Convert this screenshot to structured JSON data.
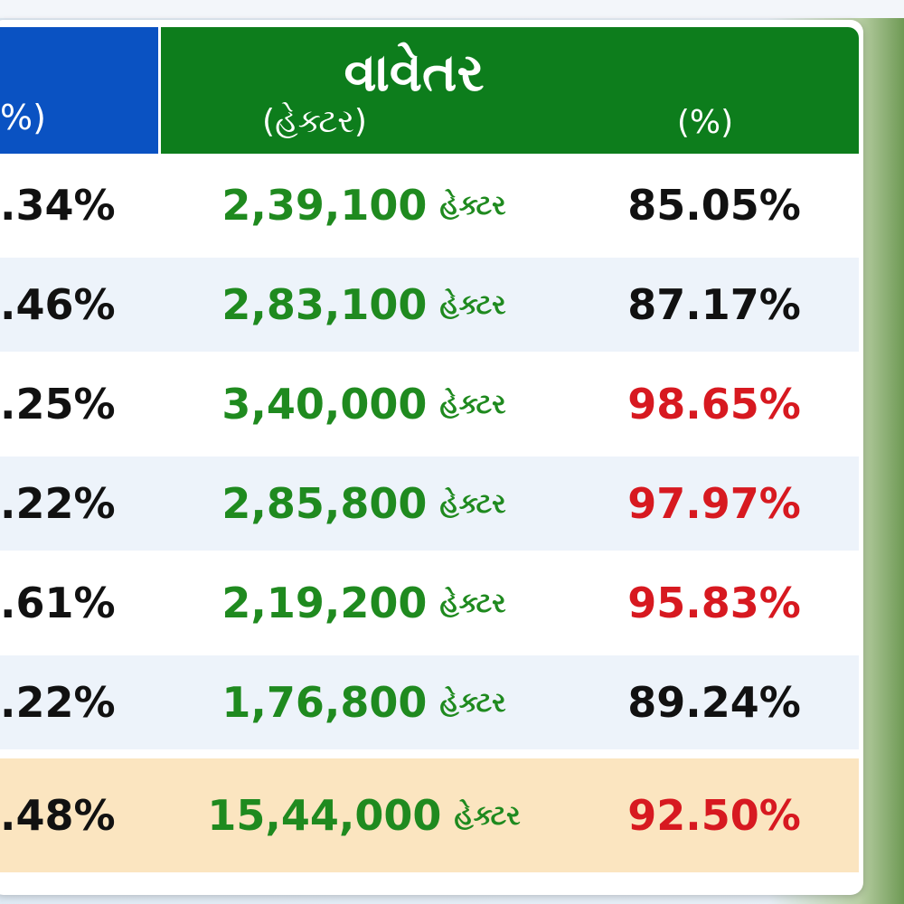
{
  "header": {
    "left_partial": "%)",
    "title": "વાવેતર",
    "sub_area": "(હેક્ટર)",
    "sub_percent": "(%)"
  },
  "table": {
    "rows": [
      {
        "left_partial": ".34%",
        "area": "2,39,100",
        "unit": "હેક્ટર",
        "percent": "85.05%",
        "color": "#111111"
      },
      {
        "left_partial": ".46%",
        "area": "2,83,100",
        "unit": "હેક્ટર",
        "percent": "87.17%",
        "color": "#111111"
      },
      {
        "left_partial": ".25%",
        "area": "3,40,000",
        "unit": "હેક્ટર",
        "percent": "98.65%",
        "color": "#d71920"
      },
      {
        "left_partial": ".22%",
        "area": "2,85,800",
        "unit": "હેક્ટર",
        "percent": "97.97%",
        "color": "#d71920"
      },
      {
        "left_partial": ".61%",
        "area": "2,19,200",
        "unit": "હેક્ટર",
        "percent": "95.83%",
        "color": "#d71920"
      },
      {
        "left_partial": ".22%",
        "area": "1,76,800",
        "unit": "હેક્ટર",
        "percent": "89.24%",
        "color": "#111111"
      }
    ],
    "total": {
      "left_partial": ".48%",
      "area": "15,44,000",
      "unit": "હેક્ટર",
      "percent": "92.50%",
      "color": "#d71920"
    }
  }
}
